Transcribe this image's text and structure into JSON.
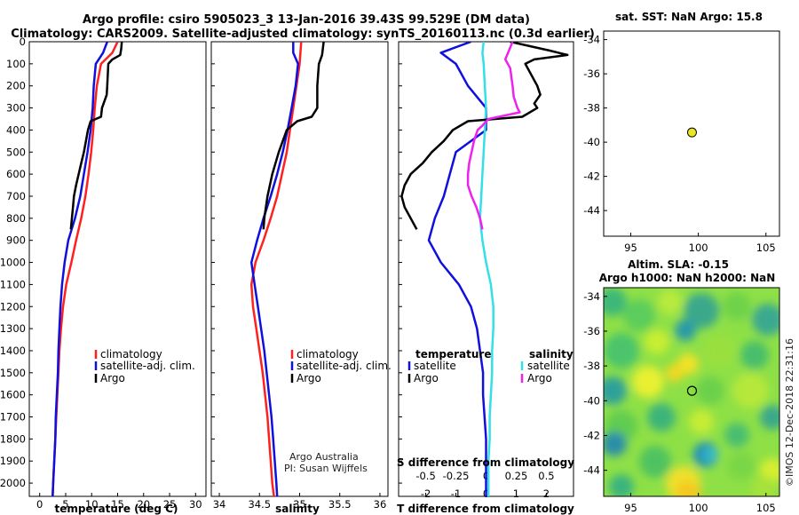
{
  "header": {
    "title_line1": "Argo profile: csiro 5905023_3 13-Jan-2016 39.43S 99.529E (DM data)",
    "title_line2": "Climatology: CARS2009. Satellite-adjusted climatology: synTS_20160113.nc (0.3d earlier)"
  },
  "colors": {
    "climatology": "#ff2020",
    "satellite": "#1010dd",
    "argo": "#000000",
    "satellite_salinity": "#33e0e8",
    "argo_salinity_diff": "#ee22ee"
  },
  "depth_axis": {
    "ticks": [
      "0",
      "100",
      "200",
      "300",
      "400",
      "500",
      "600",
      "700",
      "800",
      "900",
      "1000",
      "1100",
      "1200",
      "1300",
      "1400",
      "1500",
      "1600",
      "1700",
      "1800",
      "1900",
      "2000"
    ]
  },
  "panels": {
    "temperature": {
      "xlabel": "temperature (deg C)",
      "ticks": [
        "0",
        "5",
        "10",
        "15",
        "20",
        "25",
        "30"
      ],
      "legend": [
        "climatology",
        "satellite-adj. clim.",
        "Argo"
      ]
    },
    "salinity": {
      "xlabel": "salinity",
      "ticks": [
        "34",
        "34.5",
        "35",
        "35.5",
        "36"
      ],
      "legend": [
        "climatology",
        "satellite-adj. clim.",
        "Argo"
      ],
      "credit_line1": "Argo Australia",
      "credit_line2": "PI: Susan Wijffels"
    },
    "difference": {
      "xlabel": "T difference from climatology",
      "ticks": [
        "-2",
        "-1",
        "0",
        "1",
        "2"
      ],
      "s_axis_label": "S difference from climatology",
      "s_ticks": [
        "-0.5",
        "-0.25",
        "0",
        "0.25",
        "0.5"
      ],
      "legend_temperature_title": "temperature",
      "legend_salinity_title": "salinity",
      "legend_satellite": "satellite",
      "legend_argo": "Argo"
    }
  },
  "sst_map": {
    "title": "sat. SST: NaN Argo: 15.8",
    "lat_ticks": [
      "-34",
      "-36",
      "-38",
      "-40",
      "-42",
      "-44"
    ],
    "lon_ticks": [
      "95",
      "100",
      "105"
    ]
  },
  "sla_map": {
    "title_line1": "Altim. SLA: -0.15",
    "title_line2": "Argo h1000: NaN h2000: NaN",
    "lat_ticks": [
      "-34",
      "-36",
      "-38",
      "-40",
      "-42",
      "-44"
    ],
    "lon_ticks": [
      "95",
      "100",
      "105"
    ]
  },
  "watermark": "©IMOS 12-Dec-2018 22:31:16",
  "chart_data": [
    {
      "type": "line",
      "title": "temperature",
      "xlabel": "temperature (deg C)",
      "ylabel": "depth (m)",
      "xlim": [
        -2,
        32
      ],
      "ylim": [
        2060,
        0
      ],
      "series": [
        {
          "name": "climatology",
          "points": [
            [
              15.0,
              0
            ],
            [
              14.0,
              50
            ],
            [
              11.8,
              100
            ],
            [
              11.0,
              200
            ],
            [
              10.6,
              300
            ],
            [
              10.3,
              400
            ],
            [
              9.9,
              500
            ],
            [
              9.4,
              600
            ],
            [
              8.8,
              700
            ],
            [
              8.0,
              800
            ],
            [
              7.0,
              900
            ],
            [
              6.1,
              1000
            ],
            [
              5.1,
              1100
            ],
            [
              4.5,
              1200
            ],
            [
              4.1,
              1300
            ],
            [
              3.8,
              1400
            ],
            [
              3.6,
              1500
            ],
            [
              3.4,
              1600
            ],
            [
              3.2,
              1700
            ],
            [
              3.0,
              1800
            ],
            [
              2.8,
              1900
            ],
            [
              2.6,
              2000
            ],
            [
              2.5,
              2060
            ]
          ]
        },
        {
          "name": "satellite-adj. clim.",
          "points": [
            [
              13.0,
              0
            ],
            [
              12.2,
              50
            ],
            [
              10.8,
              100
            ],
            [
              10.4,
              200
            ],
            [
              10.2,
              300
            ],
            [
              9.8,
              400
            ],
            [
              9.2,
              500
            ],
            [
              8.5,
              600
            ],
            [
              7.8,
              700
            ],
            [
              6.8,
              800
            ],
            [
              5.5,
              900
            ],
            [
              4.8,
              1000
            ],
            [
              4.3,
              1100
            ],
            [
              4.0,
              1200
            ],
            [
              3.8,
              1300
            ],
            [
              3.6,
              1400
            ],
            [
              3.5,
              1500
            ],
            [
              3.3,
              1600
            ],
            [
              3.1,
              1700
            ],
            [
              3.0,
              1800
            ],
            [
              2.8,
              1900
            ],
            [
              2.6,
              2000
            ],
            [
              2.5,
              2060
            ]
          ]
        },
        {
          "name": "Argo",
          "points": [
            [
              15.8,
              0
            ],
            [
              15.7,
              30
            ],
            [
              15.5,
              60
            ],
            [
              14.0,
              80
            ],
            [
              13.2,
              100
            ],
            [
              13.0,
              200
            ],
            [
              12.9,
              240
            ],
            [
              12.3,
              280
            ],
            [
              12.0,
              300
            ],
            [
              11.8,
              340
            ],
            [
              9.8,
              360
            ],
            [
              9.3,
              400
            ],
            [
              8.9,
              450
            ],
            [
              8.5,
              500
            ],
            [
              8.0,
              550
            ],
            [
              7.5,
              600
            ],
            [
              7.0,
              650
            ],
            [
              6.6,
              700
            ],
            [
              6.4,
              750
            ],
            [
              6.2,
              800
            ],
            [
              6.0,
              850
            ]
          ]
        }
      ]
    },
    {
      "type": "line",
      "title": "salinity",
      "xlabel": "salinity",
      "ylabel": "depth (m)",
      "xlim": [
        33.9,
        36.1
      ],
      "ylim": [
        2060,
        0
      ],
      "series": [
        {
          "name": "climatology",
          "points": [
            [
              35.02,
              0
            ],
            [
              35.0,
              100
            ],
            [
              34.96,
              200
            ],
            [
              34.92,
              300
            ],
            [
              34.88,
              400
            ],
            [
              34.84,
              500
            ],
            [
              34.78,
              600
            ],
            [
              34.72,
              700
            ],
            [
              34.64,
              800
            ],
            [
              34.55,
              900
            ],
            [
              34.45,
              1000
            ],
            [
              34.4,
              1100
            ],
            [
              34.42,
              1200
            ],
            [
              34.46,
              1300
            ],
            [
              34.5,
              1400
            ],
            [
              34.54,
              1500
            ],
            [
              34.57,
              1600
            ],
            [
              34.6,
              1700
            ],
            [
              34.62,
              1800
            ],
            [
              34.64,
              1900
            ],
            [
              34.66,
              2000
            ],
            [
              34.68,
              2060
            ]
          ]
        },
        {
          "name": "satellite-adj. clim.",
          "points": [
            [
              34.92,
              0
            ],
            [
              34.92,
              50
            ],
            [
              34.98,
              100
            ],
            [
              34.95,
              200
            ],
            [
              34.9,
              300
            ],
            [
              34.85,
              400
            ],
            [
              34.79,
              500
            ],
            [
              34.72,
              600
            ],
            [
              34.64,
              700
            ],
            [
              34.55,
              800
            ],
            [
              34.47,
              900
            ],
            [
              34.4,
              1000
            ],
            [
              34.44,
              1100
            ],
            [
              34.48,
              1200
            ],
            [
              34.52,
              1300
            ],
            [
              34.56,
              1400
            ],
            [
              34.59,
              1500
            ],
            [
              34.62,
              1600
            ],
            [
              34.65,
              1700
            ],
            [
              34.67,
              1800
            ],
            [
              34.69,
              1900
            ],
            [
              34.71,
              2000
            ],
            [
              34.72,
              2060
            ]
          ]
        },
        {
          "name": "Argo",
          "points": [
            [
              35.3,
              0
            ],
            [
              35.28,
              60
            ],
            [
              35.24,
              100
            ],
            [
              35.22,
              200
            ],
            [
              35.22,
              300
            ],
            [
              35.15,
              340
            ],
            [
              34.97,
              360
            ],
            [
              34.84,
              400
            ],
            [
              34.74,
              500
            ],
            [
              34.66,
              600
            ],
            [
              34.6,
              700
            ],
            [
              34.56,
              800
            ],
            [
              34.55,
              850
            ]
          ]
        }
      ]
    },
    {
      "type": "line",
      "title": "difference from climatology",
      "xlabel": "T difference from climatology",
      "ylabel": "depth (m)",
      "xlim": [
        -2.9,
        2.9
      ],
      "ylim": [
        2060,
        0
      ],
      "secondary_axis": {
        "label": "S difference from climatology",
        "xlim": [
          -0.725,
          0.725
        ]
      },
      "series": [
        {
          "name": "temperature satellite",
          "axis": "T",
          "points": [
            [
              -0.5,
              0
            ],
            [
              -1.5,
              50
            ],
            [
              -1.0,
              100
            ],
            [
              -0.6,
              200
            ],
            [
              0,
              300
            ],
            [
              0,
              400
            ],
            [
              -1.0,
              500
            ],
            [
              -1.2,
              600
            ],
            [
              -1.4,
              700
            ],
            [
              -1.7,
              800
            ],
            [
              -1.9,
              900
            ],
            [
              -1.5,
              1000
            ],
            [
              -0.9,
              1100
            ],
            [
              -0.5,
              1200
            ],
            [
              -0.3,
              1300
            ],
            [
              -0.2,
              1400
            ],
            [
              -0.1,
              1500
            ],
            [
              -0.1,
              1600
            ],
            [
              -0.05,
              1700
            ],
            [
              0,
              1800
            ],
            [
              0,
              1900
            ],
            [
              0,
              2000
            ],
            [
              0,
              2060
            ]
          ]
        },
        {
          "name": "salinity satellite",
          "axis": "S",
          "points": [
            [
              -0.02,
              0
            ],
            [
              -0.03,
              50
            ],
            [
              -0.02,
              100
            ],
            [
              -0.01,
              200
            ],
            [
              0.0,
              300
            ],
            [
              -0.01,
              400
            ],
            [
              -0.02,
              500
            ],
            [
              -0.03,
              600
            ],
            [
              -0.04,
              700
            ],
            [
              -0.05,
              800
            ],
            [
              -0.03,
              900
            ],
            [
              0.0,
              1000
            ],
            [
              0.04,
              1100
            ],
            [
              0.06,
              1200
            ],
            [
              0.06,
              1300
            ],
            [
              0.05,
              1400
            ],
            [
              0.05,
              1500
            ],
            [
              0.04,
              1600
            ],
            [
              0.03,
              1700
            ],
            [
              0.03,
              1800
            ],
            [
              0.02,
              1900
            ],
            [
              0.02,
              2000
            ],
            [
              0.02,
              2060
            ]
          ]
        },
        {
          "name": "temperature Argo",
          "axis": "T",
          "points": [
            [
              0.8,
              0
            ],
            [
              2.1,
              40
            ],
            [
              2.7,
              60
            ],
            [
              1.6,
              80
            ],
            [
              1.3,
              100
            ],
            [
              1.7,
              200
            ],
            [
              1.8,
              240
            ],
            [
              1.6,
              280
            ],
            [
              1.7,
              300
            ],
            [
              1.2,
              340
            ],
            [
              -0.6,
              360
            ],
            [
              -1.1,
              400
            ],
            [
              -1.4,
              450
            ],
            [
              -1.8,
              500
            ],
            [
              -2.1,
              550
            ],
            [
              -2.5,
              600
            ],
            [
              -2.7,
              650
            ],
            [
              -2.8,
              700
            ],
            [
              -2.7,
              750
            ],
            [
              -2.5,
              800
            ],
            [
              -2.3,
              850
            ]
          ]
        },
        {
          "name": "salinity Argo",
          "axis": "S",
          "points": [
            [
              0.22,
              0
            ],
            [
              0.19,
              40
            ],
            [
              0.16,
              80
            ],
            [
              0.2,
              120
            ],
            [
              0.22,
              200
            ],
            [
              0.23,
              250
            ],
            [
              0.26,
              300
            ],
            [
              0.28,
              320
            ],
            [
              0.02,
              350
            ],
            [
              -0.03,
              380
            ],
            [
              -0.07,
              400
            ],
            [
              -0.1,
              450
            ],
            [
              -0.12,
              500
            ],
            [
              -0.14,
              550
            ],
            [
              -0.15,
              600
            ],
            [
              -0.15,
              650
            ],
            [
              -0.12,
              700
            ],
            [
              -0.08,
              750
            ],
            [
              -0.05,
              800
            ],
            [
              -0.03,
              850
            ]
          ]
        }
      ]
    },
    {
      "type": "scatter",
      "title": "sat. SST: NaN Argo: 15.8",
      "xlim": [
        93,
        106
      ],
      "ylim": [
        -45.5,
        -33.5
      ],
      "points": [
        {
          "name": "Argo float",
          "lon": 99.53,
          "lat": -39.43
        }
      ]
    },
    {
      "type": "heatmap",
      "title": "Altim. SLA: -0.15",
      "xlim": [
        93,
        106
      ],
      "ylim": [
        -45.5,
        -33.5
      ],
      "points": [
        {
          "name": "Argo float",
          "lon": 99.53,
          "lat": -39.43
        }
      ]
    }
  ]
}
